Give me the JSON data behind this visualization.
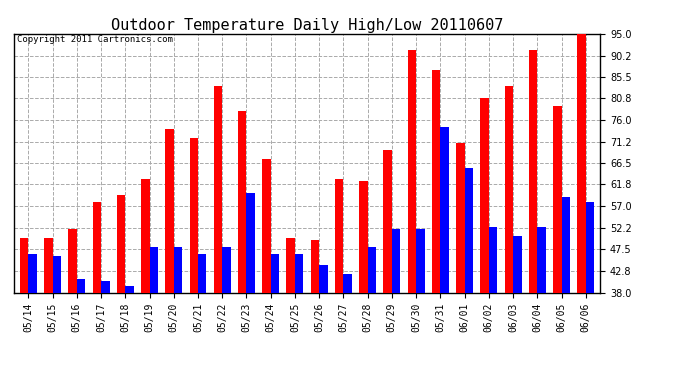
{
  "title": "Outdoor Temperature Daily High/Low 20110607",
  "copyright": "Copyright 2011 Cartronics.com",
  "dates": [
    "05/14",
    "05/15",
    "05/16",
    "05/17",
    "05/18",
    "05/19",
    "05/20",
    "05/21",
    "05/22",
    "05/23",
    "05/24",
    "05/25",
    "05/26",
    "05/27",
    "05/28",
    "05/29",
    "05/30",
    "05/31",
    "06/01",
    "06/02",
    "06/03",
    "06/04",
    "06/05",
    "06/06"
  ],
  "highs": [
    50.0,
    50.0,
    52.0,
    58.0,
    59.5,
    63.0,
    74.0,
    72.0,
    83.5,
    78.0,
    67.5,
    50.0,
    49.5,
    63.0,
    62.5,
    69.5,
    91.5,
    87.0,
    71.0,
    80.8,
    83.5,
    91.5,
    79.0,
    95.0
  ],
  "lows": [
    46.5,
    46.0,
    41.0,
    40.5,
    39.5,
    48.0,
    48.0,
    46.5,
    48.0,
    60.0,
    46.5,
    46.5,
    44.0,
    42.0,
    48.0,
    52.0,
    52.0,
    74.5,
    65.5,
    52.5,
    50.5,
    52.5,
    59.0,
    58.0
  ],
  "high_color": "#ff0000",
  "low_color": "#0000ff",
  "bg_color": "#ffffff",
  "grid_color": "#aaaaaa",
  "ylim_min": 38.0,
  "ylim_max": 95.0,
  "yticks": [
    38.0,
    42.8,
    47.5,
    52.2,
    57.0,
    61.8,
    66.5,
    71.2,
    76.0,
    80.8,
    85.5,
    90.2,
    95.0
  ],
  "title_fontsize": 11,
  "copyright_fontsize": 6.5,
  "tick_fontsize": 7,
  "bar_width": 0.35
}
